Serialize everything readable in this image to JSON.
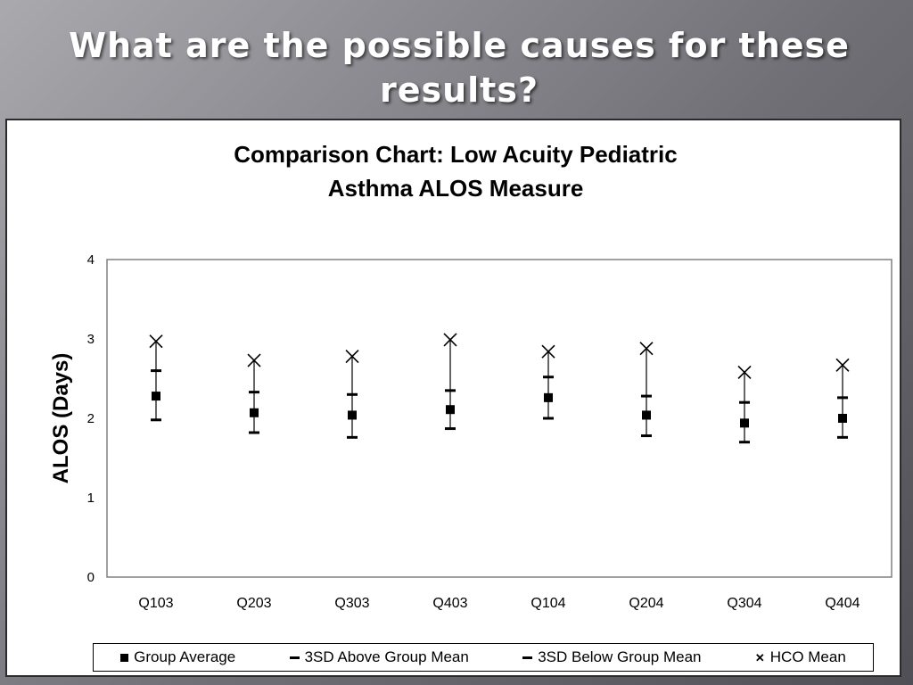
{
  "slide": {
    "title": "What are the possible causes for these results?"
  },
  "chart_data": {
    "type": "scatter",
    "title": "Comparison Chart: Low Acuity Pediatric Asthma  ALOS Measure",
    "ylabel": "ALOS (Days)",
    "xlabel": "",
    "ylim": [
      0,
      4
    ],
    "yticks": [
      "0",
      "1",
      "2",
      "3",
      "4"
    ],
    "grid": false,
    "legend_position": "bottom",
    "categories": [
      "Q103",
      "Q203",
      "Q303",
      "Q403",
      "Q104",
      "Q204",
      "Q304",
      "Q404"
    ],
    "series": [
      {
        "name": "Group Average",
        "marker": "square",
        "values": [
          2.28,
          2.07,
          2.04,
          2.11,
          2.26,
          2.04,
          1.94,
          2.0
        ]
      },
      {
        "name": "3SD Above Group Mean",
        "marker": "dash",
        "values": [
          2.6,
          2.33,
          2.3,
          2.35,
          2.52,
          2.28,
          2.2,
          2.26
        ]
      },
      {
        "name": "3SD Below Group Mean",
        "marker": "dash",
        "values": [
          1.98,
          1.82,
          1.76,
          1.87,
          2.0,
          1.78,
          1.7,
          1.76
        ]
      },
      {
        "name": "HCO Mean",
        "marker": "x",
        "values": [
          2.97,
          2.73,
          2.78,
          2.99,
          2.84,
          2.88,
          2.58,
          2.67
        ]
      }
    ],
    "colors": {
      "marker": "#000000",
      "axis": "#808080",
      "text": "#000000"
    }
  }
}
